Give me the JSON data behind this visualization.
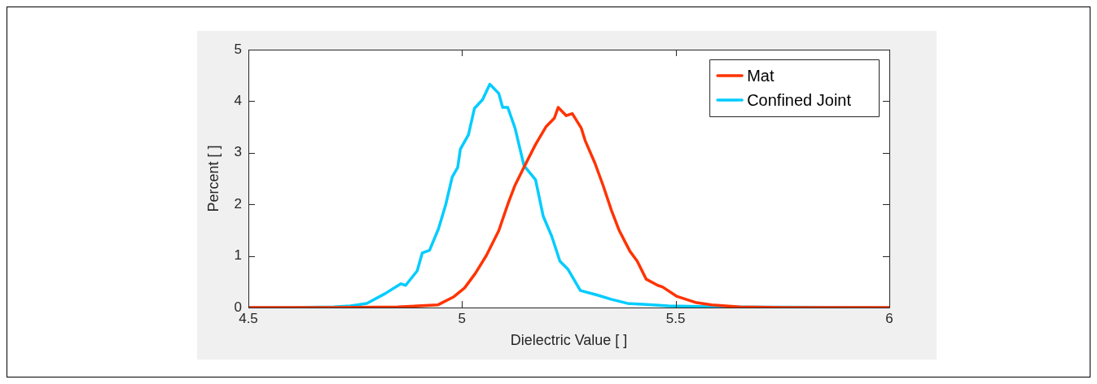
{
  "chart_data": {
    "type": "line",
    "xlabel": "Dielectric Value [ ]",
    "ylabel": "Percent [ ]",
    "xlim": [
      4.5,
      6
    ],
    "xticks": [
      4.5,
      5,
      5.5,
      6
    ],
    "ylim": [
      0,
      5
    ],
    "yticks": [
      0,
      1,
      2,
      3,
      4,
      5
    ],
    "grid": false,
    "legend": "top right",
    "marker": "none",
    "line_style": "solid",
    "series": [
      {
        "name": "Mat",
        "color": "#ff3300",
        "x": [
          4.5,
          4.7,
          4.85,
          4.943,
          4.981,
          5.006,
          5.031,
          5.057,
          5.086,
          5.107,
          5.124,
          5.145,
          5.172,
          5.197,
          5.216,
          5.225,
          5.244,
          5.258,
          5.279,
          5.288,
          5.311,
          5.33,
          5.349,
          5.368,
          5.393,
          5.41,
          5.431,
          5.458,
          5.469,
          5.502,
          5.546,
          5.584,
          5.65,
          5.75,
          6
        ],
        "values": [
          0,
          0,
          0.01,
          0.05,
          0.21,
          0.38,
          0.66,
          1.01,
          1.49,
          2.0,
          2.37,
          2.72,
          3.16,
          3.51,
          3.67,
          3.88,
          3.72,
          3.76,
          3.48,
          3.24,
          2.8,
          2.37,
          1.9,
          1.49,
          1.09,
          0.9,
          0.55,
          0.43,
          0.4,
          0.22,
          0.1,
          0.05,
          0.01,
          0,
          0
        ]
      },
      {
        "name": "Confined Joint",
        "color": "#00ccff",
        "x": [
          4.5,
          4.6,
          4.7,
          4.739,
          4.777,
          4.82,
          4.857,
          4.868,
          4.895,
          4.907,
          4.924,
          4.945,
          4.962,
          4.977,
          4.99,
          4.996,
          5.015,
          5.029,
          5.048,
          5.065,
          5.086,
          5.095,
          5.107,
          5.124,
          5.145,
          5.172,
          5.19,
          5.21,
          5.229,
          5.248,
          5.277,
          5.317,
          5.349,
          5.387,
          5.431,
          5.483,
          5.6,
          6
        ],
        "values": [
          0,
          0,
          0.01,
          0.03,
          0.08,
          0.27,
          0.46,
          0.43,
          0.71,
          1.06,
          1.11,
          1.53,
          2.0,
          2.53,
          2.72,
          3.07,
          3.35,
          3.86,
          4.03,
          4.33,
          4.15,
          3.88,
          3.88,
          3.48,
          2.75,
          2.48,
          1.77,
          1.38,
          0.9,
          0.74,
          0.33,
          0.24,
          0.16,
          0.08,
          0.06,
          0.03,
          0.01,
          0
        ]
      }
    ]
  }
}
